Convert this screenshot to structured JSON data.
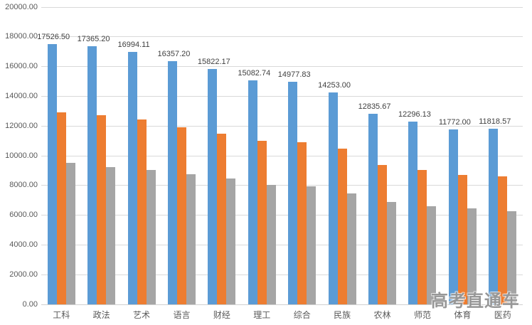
{
  "chart_data": {
    "type": "bar",
    "title": "",
    "categories": [
      "工科",
      "政法",
      "艺术",
      "语言",
      "财经",
      "理工",
      "综合",
      "民族",
      "农林",
      "师范",
      "体育",
      "医药"
    ],
    "series": [
      {
        "name": "series-blue",
        "color": "#5B9BD5",
        "values": [
          17526.5,
          17365.2,
          16994.11,
          16357.2,
          15822.17,
          15082.74,
          14977.83,
          14253.0,
          12835.67,
          12296.13,
          11772.0,
          11818.57
        ],
        "data_labels": [
          "17526.50",
          "17365.20",
          "16994.11",
          "16357.20",
          "15822.17",
          "15082.74",
          "14977.83",
          "14253.00",
          "12835.67",
          "12296.13",
          "11772.00",
          "11818.57"
        ]
      },
      {
        "name": "series-orange",
        "color": "#ED7D31",
        "values": [
          12900,
          12750,
          12450,
          11900,
          11500,
          11000,
          10900,
          10500,
          9400,
          9050,
          8700,
          8600
        ]
      },
      {
        "name": "series-gray",
        "color": "#A5A5A5",
        "values": [
          9500,
          9250,
          9050,
          8750,
          8450,
          8050,
          7950,
          7450,
          6900,
          6600,
          6450,
          6250
        ]
      }
    ],
    "y_axis": {
      "min": 0,
      "max": 20000,
      "step": 2000,
      "tick_labels": [
        "0.00",
        "2000.00",
        "4000.00",
        "6000.00",
        "8000.00",
        "10000.00",
        "12000.00",
        "14000.00",
        "16000.00",
        "18000.00",
        "20000.00"
      ]
    },
    "xlabel": "",
    "ylabel": "",
    "grid": true,
    "legend": "none",
    "watermark": "高考直通车"
  },
  "colors": {
    "background": "#FFFFFF",
    "gridline": "#D9D9D9",
    "axis_line": "#D0D0D0",
    "tick_text": "#595959",
    "data_label_text": "#404040"
  }
}
